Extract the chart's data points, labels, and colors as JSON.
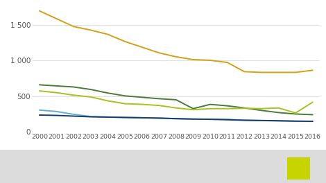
{
  "years": [
    2000,
    2001,
    2002,
    2003,
    2004,
    2005,
    2006,
    2007,
    2008,
    2009,
    2010,
    2011,
    2012,
    2013,
    2014,
    2015,
    2016
  ],
  "series": [
    {
      "name": "orange",
      "color": "#d4a017",
      "values": [
        1700,
        1590,
        1480,
        1430,
        1370,
        1270,
        1190,
        1110,
        1055,
        1015,
        1005,
        975,
        845,
        835,
        835,
        835,
        865
      ]
    },
    {
      "name": "dark_green",
      "color": "#4a7a3a",
      "values": [
        660,
        645,
        630,
        595,
        545,
        505,
        485,
        465,
        450,
        325,
        385,
        365,
        335,
        300,
        270,
        250,
        240
      ]
    },
    {
      "name": "yellow_green",
      "color": "#a8c020",
      "values": [
        575,
        550,
        515,
        490,
        435,
        395,
        385,
        370,
        335,
        310,
        325,
        325,
        330,
        325,
        335,
        265,
        415
      ]
    },
    {
      "name": "light_blue",
      "color": "#5ab0d0",
      "values": [
        305,
        285,
        245,
        215,
        207,
        202,
        197,
        192,
        182,
        177,
        177,
        175,
        162,
        157,
        152,
        147,
        145
      ]
    },
    {
      "name": "dark_blue",
      "color": "#1a3a6a",
      "values": [
        235,
        230,
        220,
        210,
        206,
        201,
        197,
        192,
        185,
        179,
        175,
        169,
        162,
        159,
        155,
        150,
        147
      ]
    }
  ],
  "ylim": [
    0,
    1750
  ],
  "yticks": [
    0,
    500,
    1000,
    1500
  ],
  "ytick_labels": [
    "0",
    "500",
    "1 000",
    "1 500"
  ],
  "xlim": [
    1999.6,
    2016.4
  ],
  "fig_bg_color": "#ffffff",
  "plot_bg_color": "#ffffff",
  "bottom_bg_color": "#dcdcdc",
  "grid_color": "#e0e0e0",
  "legend_color": "#c8d400"
}
